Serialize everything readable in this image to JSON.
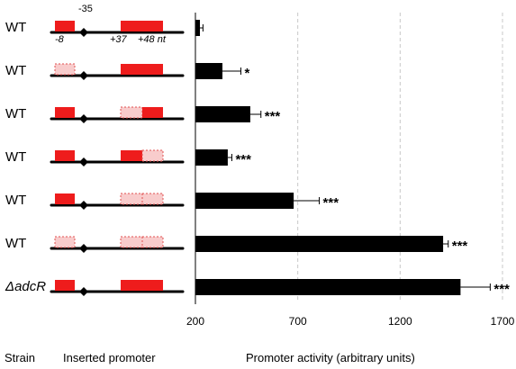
{
  "chart_data": {
    "type": "bar",
    "orientation": "horizontal",
    "xlabel": "Promoter activity (arbitrary units)",
    "column_labels": {
      "strain": "Strain",
      "promoter": "Inserted promoter"
    },
    "xlim": [
      200,
      1750
    ],
    "xticks": [
      200,
      700,
      1200,
      1700
    ],
    "gridlines": "vertical",
    "construct_labels": {
      "minus35": "-35",
      "minus8": "-8",
      "plus37": "+37",
      "plus48": "+48 nt"
    },
    "rows": [
      {
        "strain": "WT",
        "value": 222,
        "error": 15,
        "significance": "",
        "boxes": [
          "solid",
          "solid",
          "solid"
        ]
      },
      {
        "strain": "WT",
        "value": 332,
        "error": 90,
        "significance": "*",
        "boxes": [
          "dashed",
          "solid",
          "solid"
        ]
      },
      {
        "strain": "WT",
        "value": 468,
        "error": 52,
        "significance": "***",
        "boxes": [
          "solid",
          "dashed",
          "solid"
        ]
      },
      {
        "strain": "WT",
        "value": 358,
        "error": 20,
        "significance": "***",
        "boxes": [
          "solid",
          "solid",
          "dashed"
        ]
      },
      {
        "strain": "WT",
        "value": 680,
        "error": 125,
        "significance": "***",
        "boxes": [
          "solid",
          "dashed",
          "dashed"
        ]
      },
      {
        "strain": "WT",
        "value": 1410,
        "error": 25,
        "significance": "***",
        "boxes": [
          "dashed",
          "dashed",
          "dashed"
        ]
      },
      {
        "strain": "ΔadcR",
        "value": 1495,
        "error": 145,
        "significance": "***",
        "boxes": [
          "solid",
          "solid",
          "solid"
        ]
      }
    ]
  },
  "colors": {
    "solid_box": "#ee1c1c",
    "dashed_box_fill": "#f8cccc",
    "dashed_box_border": "#e05050",
    "bar": "#000000",
    "grid": "#c8c8c8"
  }
}
